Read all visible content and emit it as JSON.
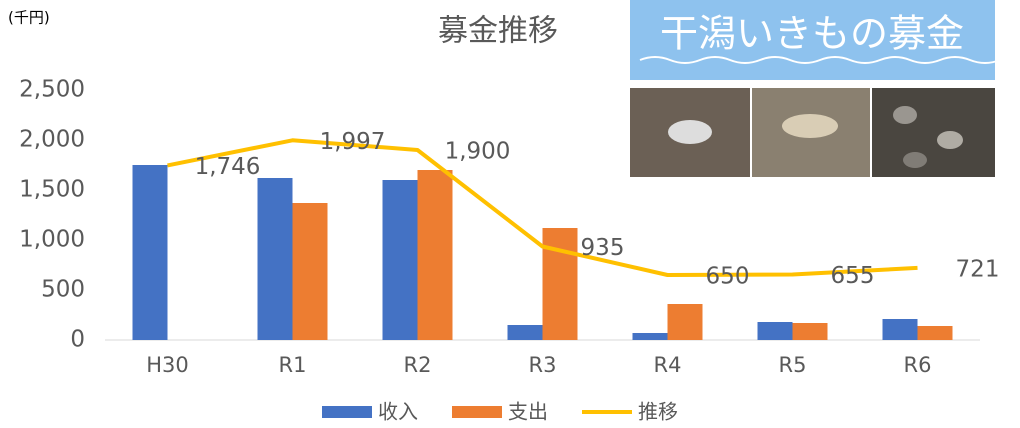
{
  "chart_data": {
    "type": "bar-line",
    "title": "募金推移",
    "unit_label": "(千円)",
    "categories": [
      "H30",
      "R1",
      "R2",
      "R3",
      "R4",
      "R5",
      "R6"
    ],
    "series": [
      {
        "name": "收入",
        "color": "#4472c4",
        "type": "bar",
        "values": [
          1750,
          1620,
          1600,
          150,
          70,
          180,
          210
        ]
      },
      {
        "name": "支出",
        "color": "#ed7d31",
        "type": "bar",
        "values": [
          0,
          1370,
          1700,
          1120,
          360,
          170,
          140
        ]
      },
      {
        "name": "推移",
        "color": "#ffc000",
        "type": "line",
        "values": [
          1746,
          1997,
          1900,
          935,
          650,
          655,
          721
        ],
        "value_labels": [
          "1,746",
          "1,997",
          "1,900",
          "935",
          "650",
          "655",
          "721"
        ]
      }
    ],
    "ylim": [
      0,
      2500
    ],
    "yticks": [
      0,
      500,
      {
        "value": 1000,
        "label": "1,000"
      },
      {
        "value": 1500,
        "label": "1,500"
      },
      {
        "value": 2000,
        "label": "2,000"
      },
      {
        "value": 2500,
        "label": "2,500"
      }
    ],
    "grid": false,
    "legend": "bottom"
  },
  "image_panel": {
    "title": "干潟いきもの募金"
  }
}
